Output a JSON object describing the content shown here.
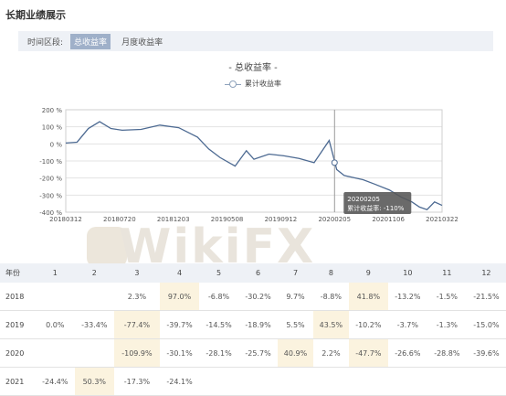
{
  "title": "长期业绩展示",
  "filter": {
    "label": "时间区段:",
    "tabs": [
      {
        "label": "总收益率",
        "active": true
      },
      {
        "label": "月度收益率",
        "active": false
      }
    ]
  },
  "chart_data": {
    "type": "line",
    "title": "- 总收益率 -",
    "legend": "累计收益率",
    "legend_placement": "top-center",
    "ylim": [
      -400,
      200
    ],
    "yticks": [
      "200 %",
      "100 %",
      "0 %",
      "-100 %",
      "-200 %",
      "-300 %",
      "-400 %"
    ],
    "xticks": [
      "20180312",
      "20180720",
      "20181203",
      "20190508",
      "20190912",
      "20200205",
      "20201106",
      "20210322"
    ],
    "grid": true,
    "series": [
      {
        "name": "累计收益率",
        "color": "#4d6a92",
        "x": [
          0,
          0.03,
          0.06,
          0.09,
          0.12,
          0.15,
          0.2,
          0.25,
          0.3,
          0.35,
          0.38,
          0.41,
          0.45,
          0.48,
          0.5,
          0.54,
          0.58,
          0.62,
          0.66,
          0.7,
          0.72,
          0.74,
          0.76,
          0.79,
          0.82,
          0.86,
          0.89,
          0.92,
          0.94,
          0.96,
          0.98,
          1.0
        ],
        "values": [
          5,
          10,
          90,
          130,
          90,
          80,
          85,
          110,
          95,
          40,
          -30,
          -80,
          -130,
          -40,
          -90,
          -60,
          -70,
          -85,
          -110,
          20,
          -150,
          -185,
          -195,
          -210,
          -235,
          -270,
          -310,
          -340,
          -370,
          -385,
          -340,
          -360
        ]
      }
    ],
    "tooltip": {
      "date": "20200205",
      "label": "累计收益率: -110%"
    }
  },
  "table": {
    "headers": [
      "年份",
      "1",
      "2",
      "3",
      "4",
      "5",
      "6",
      "7",
      "8",
      "9",
      "10",
      "11",
      "12"
    ],
    "rows": [
      [
        "2018",
        "",
        "",
        "2.3%",
        "97.0%",
        "-6.8%",
        "-30.2%",
        "9.7%",
        "-8.8%",
        "41.8%",
        "-13.2%",
        "-1.5%",
        "-21.5%"
      ],
      [
        "2019",
        "0.0%",
        "-33.4%",
        "-77.4%",
        "-39.7%",
        "-14.5%",
        "-18.9%",
        "5.5%",
        "43.5%",
        "-10.2%",
        "-3.7%",
        "-1.3%",
        "-15.0%"
      ],
      [
        "2020",
        "",
        "",
        "-109.9%",
        "-30.1%",
        "-28.1%",
        "-25.7%",
        "40.9%",
        "2.2%",
        "-47.7%",
        "-26.6%",
        "-28.8%",
        "-39.6%"
      ],
      [
        "2021",
        "-24.4%",
        "50.3%",
        "-17.3%",
        "-24.1%",
        "",
        "",
        "",
        "",
        "",
        "",
        "",
        ""
      ]
    ]
  }
}
